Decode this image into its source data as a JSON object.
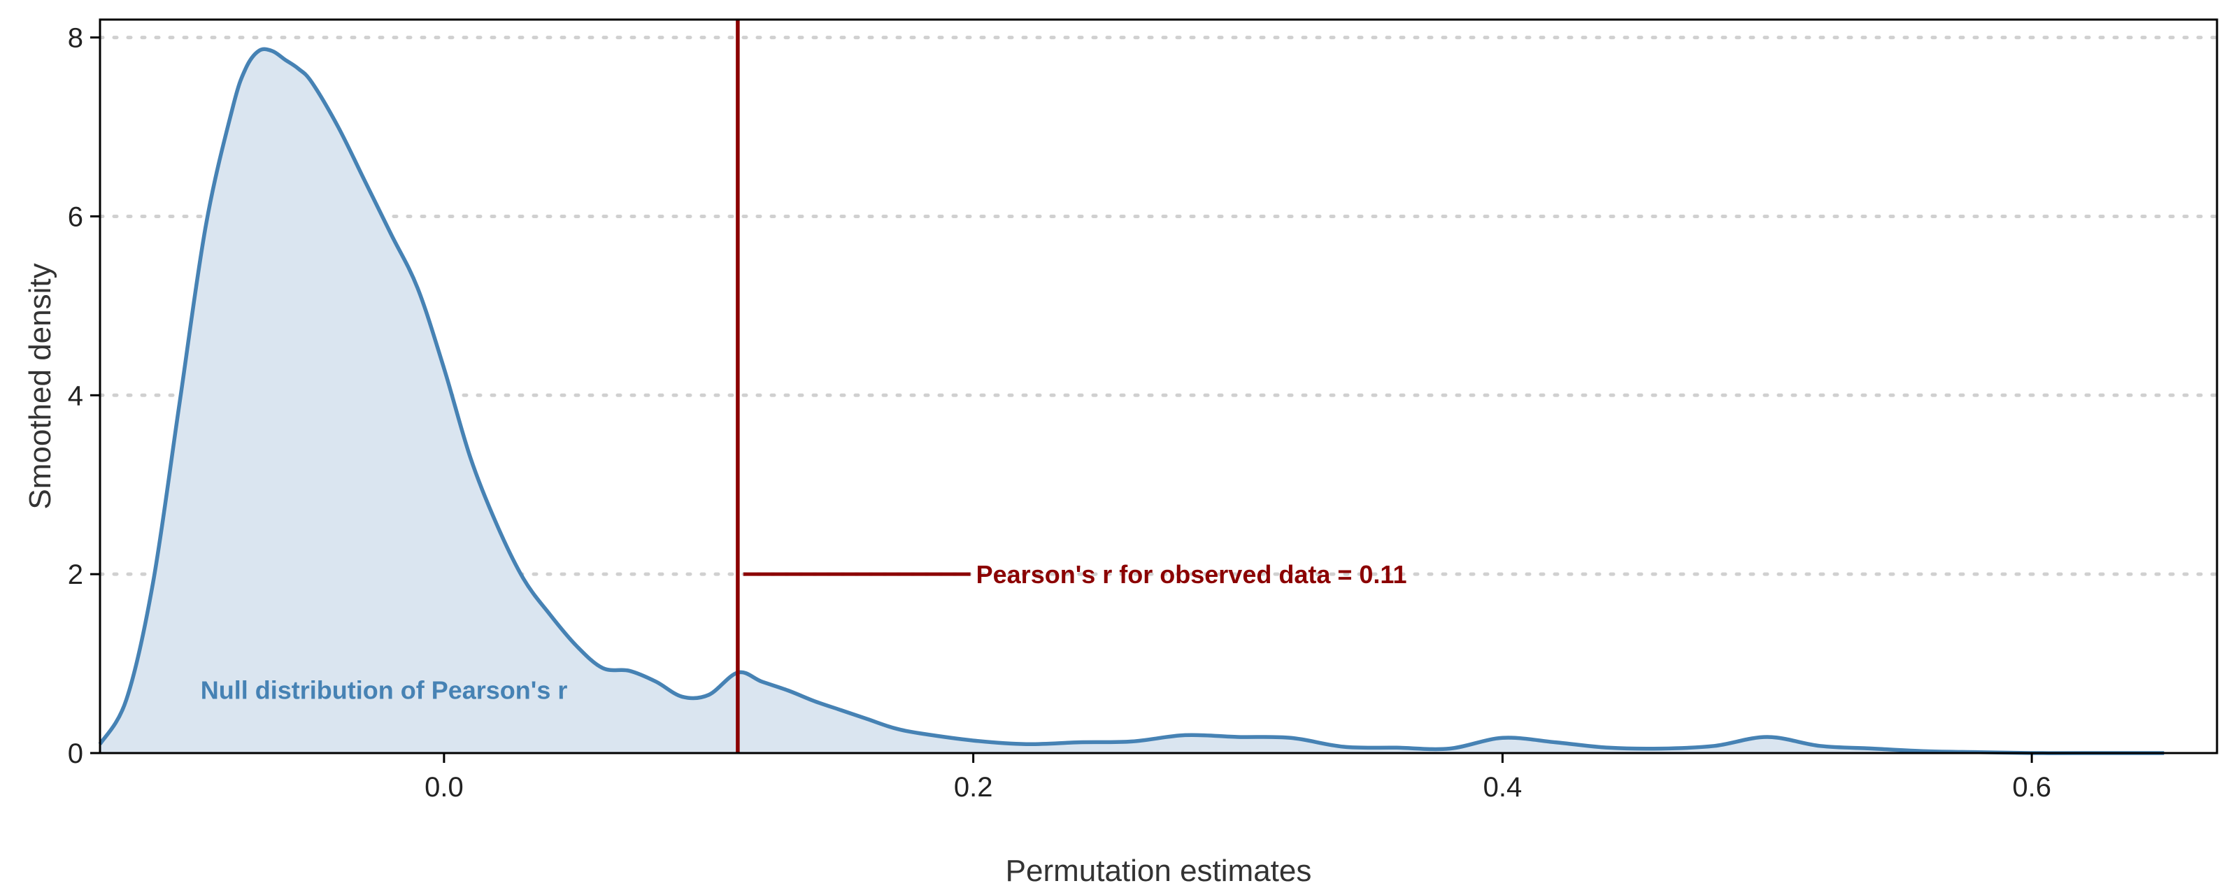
{
  "chart_data": {
    "type": "area",
    "xlabel": "Permutation estimates",
    "ylabel": "Smoothed density",
    "xlim": [
      -0.13,
      0.67
    ],
    "ylim": [
      0,
      8.2
    ],
    "x_ticks": [
      0.0,
      0.2,
      0.4,
      0.6
    ],
    "x_tick_labels": [
      "0.0",
      "0.2",
      "0.4",
      "0.6"
    ],
    "y_ticks": [
      0,
      2,
      4,
      6,
      8
    ],
    "y_tick_labels": [
      "0",
      "2",
      "4",
      "6",
      "8"
    ],
    "grid": {
      "horizontal": true,
      "style": "dotted"
    },
    "series": [
      {
        "name": "Null distribution of Pearson's r",
        "type": "density",
        "x": [
          -0.13,
          -0.12,
          -0.11,
          -0.1,
          -0.09,
          -0.08,
          -0.075,
          -0.07,
          -0.065,
          -0.06,
          -0.055,
          -0.05,
          -0.04,
          -0.03,
          -0.02,
          -0.01,
          0.0,
          0.01,
          0.02,
          0.03,
          0.04,
          0.05,
          0.06,
          0.07,
          0.08,
          0.09,
          0.1,
          0.111,
          0.12,
          0.13,
          0.14,
          0.15,
          0.16,
          0.17,
          0.18,
          0.2,
          0.22,
          0.24,
          0.26,
          0.28,
          0.3,
          0.32,
          0.34,
          0.36,
          0.38,
          0.4,
          0.42,
          0.44,
          0.46,
          0.48,
          0.5,
          0.52,
          0.54,
          0.56,
          0.58,
          0.6,
          0.62,
          0.65
        ],
        "y": [
          0.1,
          0.6,
          1.9,
          3.9,
          5.9,
          7.2,
          7.65,
          7.85,
          7.85,
          7.75,
          7.65,
          7.5,
          7.0,
          6.4,
          5.8,
          5.2,
          4.3,
          3.3,
          2.55,
          1.95,
          1.55,
          1.2,
          0.95,
          0.92,
          0.8,
          0.63,
          0.65,
          0.9,
          0.8,
          0.7,
          0.58,
          0.48,
          0.38,
          0.28,
          0.22,
          0.14,
          0.1,
          0.12,
          0.13,
          0.2,
          0.18,
          0.17,
          0.07,
          0.06,
          0.05,
          0.17,
          0.12,
          0.06,
          0.05,
          0.08,
          0.18,
          0.08,
          0.05,
          0.02,
          0.01,
          0.0,
          0.0,
          0.0
        ],
        "color": "#4682b4",
        "fill": "#dae5f0"
      }
    ],
    "reference_line": {
      "x": 0.111,
      "color": "#8b0000"
    },
    "annotations": [
      {
        "text": "Pearson's r for observed data = 0.11",
        "x": 0.2,
        "y": 2,
        "color": "#8b0000",
        "pointer_from_x": 0.111
      },
      {
        "text": "Null distribution of Pearson's r",
        "x": -0.092,
        "y": 0.7,
        "color": "#4682b4"
      }
    ]
  }
}
